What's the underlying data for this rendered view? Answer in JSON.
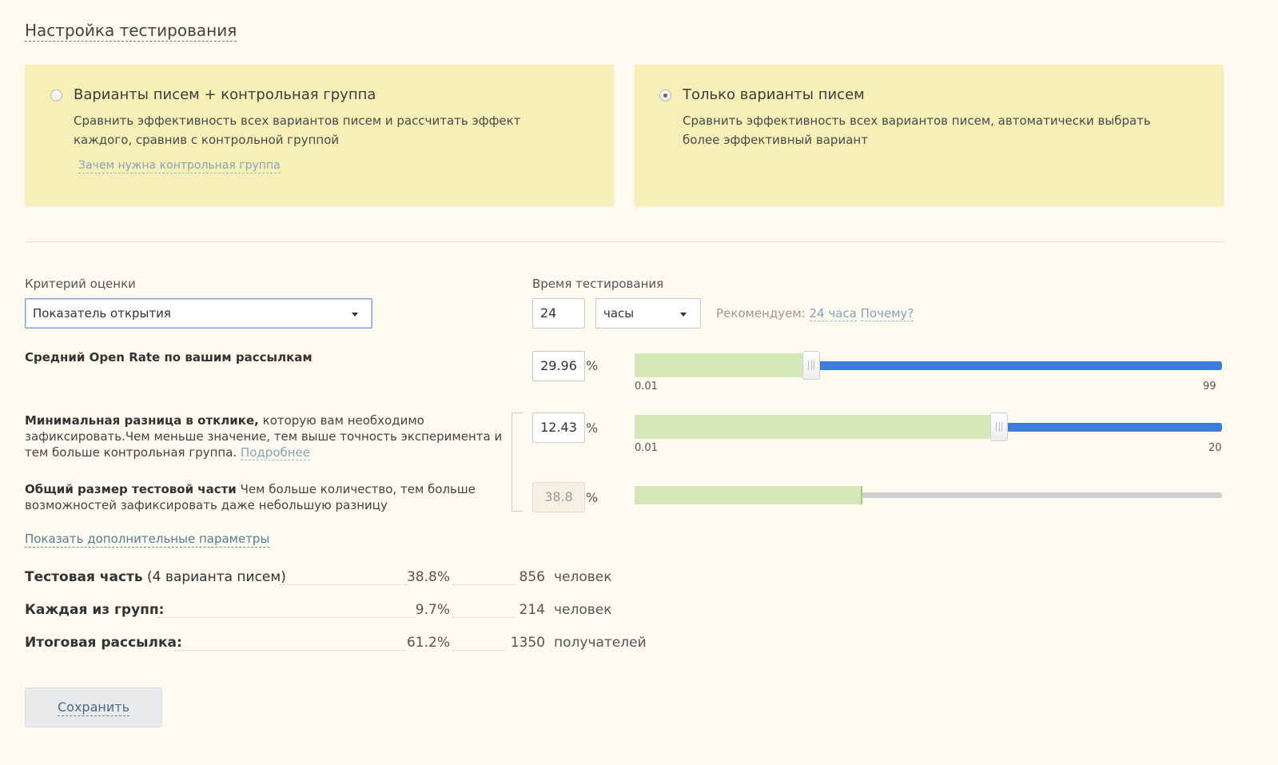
{
  "page_title": "Настройка тестирования",
  "options": [
    {
      "title": "Варианты писем + контрольная группа",
      "desc_line1": "Сравнить эффективность всех вариантов писем и  рассчитать эффект",
      "desc_line2": "каждого, сравнив с  контрольной группой",
      "link": "Зачем нужна контрольная группа",
      "selected": false
    },
    {
      "title": "Только варианты писем",
      "desc_line1": "Сравнить эффективность всех вариантов писем, автоматически выбрать",
      "desc_line2": "более эффективный вариант",
      "selected": true
    }
  ],
  "criteria": {
    "label": "Критерий оценки",
    "value": "Показатель открытия"
  },
  "duration": {
    "label": "Время тестирования",
    "value": "24",
    "unit": "часы",
    "recommend_prefix": "Рекомендуем:",
    "recommend_value": "24 часа",
    "why_link": "Почему?"
  },
  "open_rate": {
    "label": "Средний Open Rate по вашим рассылкам",
    "value": "29.96",
    "unit": "%",
    "slider_min": "0.01",
    "slider_max": "99",
    "slider_fraction": 0.3
  },
  "min_diff": {
    "label_bold": "Минимальная разница в отклике,",
    "label_rest1": " которую вам необходимо",
    "label_line2": "зафиксировать.Чем меньше значение, тем выше точность эксперимента и",
    "label_line3": "тем больше контрольная группа.",
    "more_link": "Подробнее",
    "value": "12.43",
    "unit": "%",
    "slider_min": "0.01",
    "slider_max": "20",
    "slider_fraction": 0.62
  },
  "test_size": {
    "label_bold": "Общий размер тестовой части",
    "label_rest1": " Чем больше количество, тем больше",
    "label_line2": "возможностей зафиксировать даже небольшую разницу",
    "value": "38.8",
    "unit": "%",
    "fill_fraction": 0.388
  },
  "more_params_link": "Показать дополнительные параметры",
  "summary": [
    {
      "label_bold": "Тестовая часть",
      "label_rest": " (4 варианта писем)",
      "percent": "38.8%",
      "count": "856",
      "unit": "человек"
    },
    {
      "label_bold": "Каждая из групп:",
      "label_rest": "",
      "percent": "9.7%",
      "count": "214",
      "unit": "человек"
    },
    {
      "label_bold": "Итоговая рассылка:",
      "label_rest": "",
      "percent": "61.2%",
      "count": "1350",
      "unit": "получателей"
    }
  ],
  "save_button": "Сохранить",
  "colors": {
    "background": "#fdfbef",
    "card": "#f6f0b8",
    "slider_fill": "#d5e8b7",
    "slider_active": "#3b7dd8",
    "link": "#8aa2b6"
  }
}
